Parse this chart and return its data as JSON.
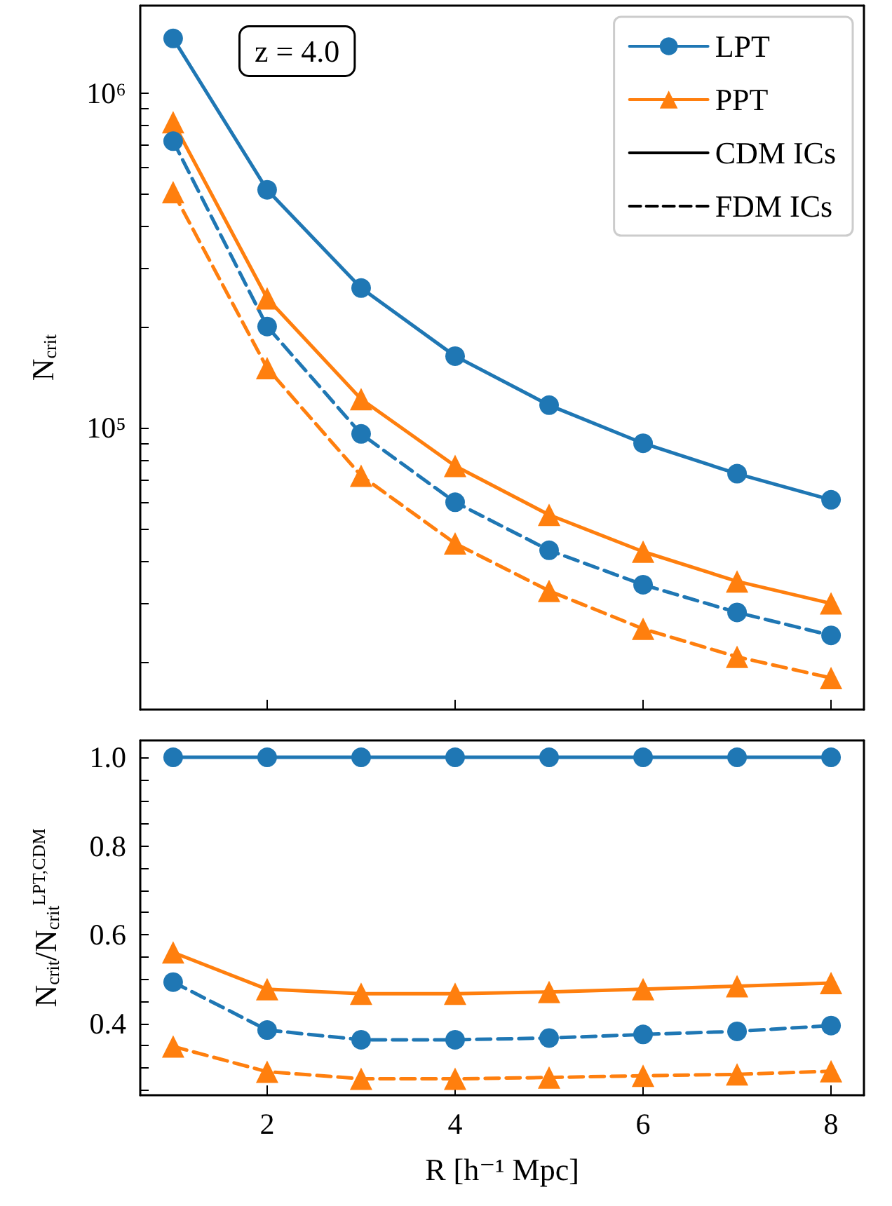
{
  "chart_data": [
    {
      "type": "line",
      "ylabel": "N$_{crit}$",
      "annotations": [
        "z = 4.0"
      ],
      "legend": "top right",
      "log": true,
      "tick_labels": "y",
      "x": [
        1,
        2,
        3,
        4,
        5,
        6,
        7,
        8
      ],
      "xlim": [
        0.65,
        8.35
      ],
      "xticks": [
        {
          "value": 2,
          "label": null
        },
        {
          "value": 4,
          "label": null
        },
        {
          "value": 6,
          "label": null
        },
        {
          "value": 8,
          "label": null
        }
      ],
      "ylim": [
        14400,
        1830000
      ],
      "yticks": [
        {
          "value": 20000,
          "label": null
        },
        {
          "value": 30000,
          "label": null
        },
        {
          "value": 40000,
          "label": null
        },
        {
          "value": 50000,
          "label": null
        },
        {
          "value": 60000,
          "label": null
        },
        {
          "value": 70000,
          "label": null
        },
        {
          "value": 80000,
          "label": null
        },
        {
          "value": 90000,
          "label": null
        },
        {
          "value": 100000,
          "label": "10⁵"
        },
        {
          "value": 200000,
          "label": null
        },
        {
          "value": 300000,
          "label": null
        },
        {
          "value": 400000,
          "label": null
        },
        {
          "value": 500000,
          "label": null
        },
        {
          "value": 600000,
          "label": null
        },
        {
          "value": 700000,
          "label": null
        },
        {
          "value": 800000,
          "label": null
        },
        {
          "value": 900000,
          "label": null
        },
        {
          "value": 1000000,
          "label": "10⁶"
        }
      ],
      "series": [
        {
          "name": "LPT",
          "color": "#1f77b4",
          "marker": "circle",
          "line_style": "solid",
          "values": [
            1460000,
            515000,
            262000,
            164000,
            117000,
            90000,
            73000,
            61000
          ]
        },
        {
          "name": "PPT",
          "color": "#ff7f0e",
          "marker": "triangle",
          "line_style": "solid",
          "values": [
            820000,
            244000,
            122000,
            77000,
            55000,
            42700,
            34800,
            29900
          ]
        },
        {
          "name": "CDM ICs",
          "color": "#000000",
          "marker": "none",
          "line_style": "solid",
          "values": [
            null,
            null,
            null,
            null,
            null,
            null,
            null,
            null
          ]
        },
        {
          "name": "FDM ICs",
          "color": "#000000",
          "marker": "none",
          "line_style": "dashed",
          "values": [
            null,
            null,
            null,
            null,
            null,
            null,
            null,
            null
          ]
        },
        {
          "color": "#1f77b4",
          "marker": "circle",
          "line_style": "dashed",
          "values": [
            720000,
            201000,
            96000,
            60000,
            43100,
            34000,
            28100,
            24000
          ]
        },
        {
          "color": "#ff7f0e",
          "marker": "triangle",
          "line_style": "dashed",
          "values": [
            507000,
            151000,
            72000,
            45200,
            32600,
            25100,
            20700,
            17900
          ]
        }
      ]
    },
    {
      "type": "line",
      "xlabel": "R [h⁻¹ Mpc]",
      "ylabel": "N$_{crit}$/N$_{crit}$$^{LPT,CDM}$",
      "x": [
        1,
        2,
        3,
        4,
        5,
        6,
        7,
        8
      ],
      "xlim": [
        0.65,
        8.35
      ],
      "xticks": [
        2,
        4,
        6,
        8
      ],
      "ylim": [
        0.238,
        1.038
      ],
      "yticks": [
        {
          "value": 0.25,
          "label": null
        },
        {
          "value": 0.3,
          "label": null
        },
        {
          "value": 0.35,
          "label": null
        },
        0.4,
        {
          "value": 0.45,
          "label": null
        },
        {
          "value": 0.5,
          "label": null
        },
        {
          "value": 0.55,
          "label": null
        },
        0.6,
        {
          "value": 0.65,
          "label": null
        },
        {
          "value": 0.7,
          "label": null
        },
        {
          "value": 0.75,
          "label": null
        },
        0.8,
        {
          "value": 0.85,
          "label": null
        },
        {
          "value": 0.9,
          "label": null
        },
        {
          "value": 0.95,
          "label": null
        },
        {
          "value": 1,
          "label": "1.0"
        }
      ],
      "series": [
        {
          "color": "#1f77b4",
          "marker": "circle",
          "line_style": "solid",
          "values": [
            1,
            1,
            1,
            1,
            1,
            1,
            1,
            1
          ]
        },
        {
          "color": "#ff7f0e",
          "marker": "triangle",
          "line_style": "solid",
          "values": [
            0.56,
            0.477,
            0.467,
            0.467,
            0.471,
            0.477,
            0.484,
            0.491
          ]
        },
        {
          "color": "#1f77b4",
          "marker": "circle",
          "line_style": "dashed",
          "values": [
            0.493,
            0.385,
            0.363,
            0.363,
            0.367,
            0.375,
            0.382,
            0.395
          ]
        },
        {
          "color": "#ff7f0e",
          "marker": "triangle",
          "line_style": "dashed",
          "values": [
            0.348,
            0.291,
            0.275,
            0.275,
            0.278,
            0.282,
            0.285,
            0.292
          ]
        }
      ]
    }
  ]
}
